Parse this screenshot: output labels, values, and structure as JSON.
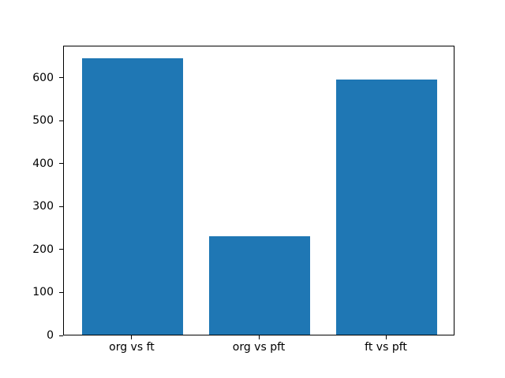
{
  "figure": {
    "background": "#ffffff",
    "frame_color": "#000000",
    "text_color": "#000000"
  },
  "chart_data": {
    "type": "bar",
    "title": "",
    "xlabel": "",
    "ylabel": "",
    "categories": [
      "org vs ft",
      "org vs pft",
      "ft vs pft"
    ],
    "values": [
      643,
      230,
      594
    ],
    "bar_color": "#1f77b4",
    "bar_width": 0.8,
    "xlim": [
      -0.54,
      2.54
    ],
    "ylim": [
      0,
      675
    ],
    "yticks": [
      0,
      100,
      200,
      300,
      400,
      500,
      600
    ],
    "grid": false,
    "legend": "none"
  }
}
